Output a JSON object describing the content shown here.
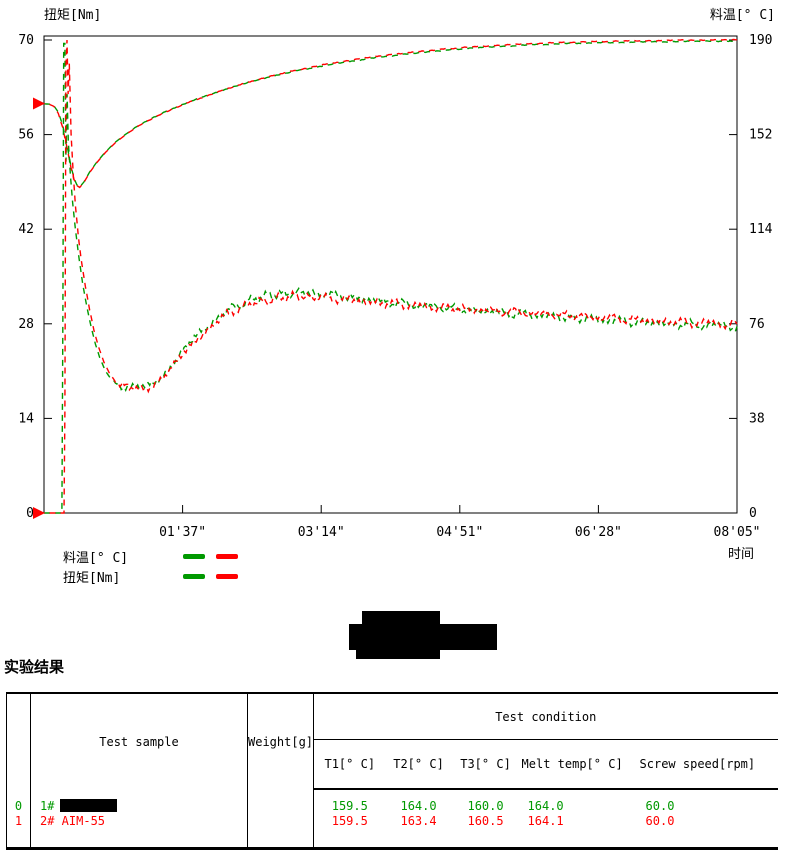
{
  "chart": {
    "title_left": "扭矩[Nm]",
    "title_right": "料温[° C]",
    "xlabel": "时间",
    "colors": {
      "series1": "#009900",
      "series2": "#ff0000",
      "axis": "#000000",
      "marker": "#ff0000"
    },
    "left_axis": {
      "label": "扭矩[Nm]",
      "ticks": [
        70,
        56,
        42,
        28,
        14,
        0
      ],
      "min": 0,
      "max": 70
    },
    "right_axis": {
      "label": "料温[° C]",
      "ticks": [
        190,
        152,
        114,
        76,
        38,
        0
      ],
      "min": 0,
      "max": 190
    },
    "x_axis": {
      "tick_seconds": [
        97,
        194,
        291,
        388,
        485
      ],
      "tick_labels": [
        "01'37\"",
        "03'14\"",
        "04'51\"",
        "06'28\"",
        "08'05\""
      ],
      "min": 0,
      "max": 485
    },
    "legend": [
      {
        "label": "料温[° C]"
      },
      {
        "label": "扭矩[Nm]"
      }
    ],
    "start_markers": [
      {
        "axis": "right",
        "value": 164.5
      },
      {
        "axis": "left",
        "value": 0
      }
    ]
  },
  "chart_data": {
    "type": "line",
    "x_unit": "seconds",
    "ylim_left": [
      0,
      70
    ],
    "ylim_right": [
      0,
      190
    ],
    "xlim": [
      0,
      485
    ],
    "series": [
      {
        "name": "melt-temp-sample-1",
        "axis": "right",
        "color": "#009900",
        "noise": 0.15,
        "noise_start": 55,
        "points": [
          [
            0,
            164.4
          ],
          [
            4,
            164.2
          ],
          [
            7,
            163.5
          ],
          [
            10,
            161
          ],
          [
            13,
            156
          ],
          [
            16,
            148
          ],
          [
            19,
            139
          ],
          [
            21,
            134.5
          ],
          [
            23,
            131.8
          ],
          [
            25,
            131
          ],
          [
            28,
            133
          ],
          [
            32,
            137
          ],
          [
            37,
            141
          ],
          [
            43,
            145
          ],
          [
            50,
            149
          ],
          [
            58,
            152.5
          ],
          [
            67,
            156
          ],
          [
            77,
            159
          ],
          [
            88,
            162
          ],
          [
            100,
            164.8
          ],
          [
            113,
            167.5
          ],
          [
            127,
            170.2
          ],
          [
            142,
            172.8
          ],
          [
            158,
            175.2
          ],
          [
            175,
            177.4
          ],
          [
            193,
            179.4
          ],
          [
            212,
            181.2
          ],
          [
            232,
            182.9
          ],
          [
            253,
            184.3
          ],
          [
            275,
            185.6
          ],
          [
            298,
            186.7
          ],
          [
            322,
            187.5
          ],
          [
            347,
            188.2
          ],
          [
            373,
            188.7
          ],
          [
            400,
            189.0
          ],
          [
            430,
            189.3
          ],
          [
            460,
            189.5
          ],
          [
            485,
            189.6
          ]
        ]
      },
      {
        "name": "melt-temp-sample-2",
        "axis": "right",
        "color": "#ff0000",
        "noise": 0.15,
        "noise_start": 55,
        "points": [
          [
            0,
            164.4
          ],
          [
            4,
            164.1
          ],
          [
            7,
            163.3
          ],
          [
            10,
            160.5
          ],
          [
            13,
            155
          ],
          [
            16,
            147
          ],
          [
            19,
            138.5
          ],
          [
            21,
            134
          ],
          [
            23,
            131.5
          ],
          [
            25,
            130.8
          ],
          [
            28,
            132.8
          ],
          [
            32,
            136.8
          ],
          [
            37,
            140.8
          ],
          [
            43,
            144.8
          ],
          [
            50,
            148.8
          ],
          [
            58,
            152.3
          ],
          [
            67,
            155.8
          ],
          [
            77,
            158.8
          ],
          [
            88,
            161.8
          ],
          [
            100,
            164.6
          ],
          [
            113,
            167.4
          ],
          [
            127,
            170.2
          ],
          [
            142,
            172.9
          ],
          [
            158,
            175.4
          ],
          [
            175,
            177.7
          ],
          [
            193,
            179.8
          ],
          [
            212,
            181.7
          ],
          [
            232,
            183.4
          ],
          [
            253,
            184.8
          ],
          [
            275,
            186.1
          ],
          [
            298,
            187.2
          ],
          [
            322,
            188.0
          ],
          [
            347,
            188.7
          ],
          [
            373,
            189.2
          ],
          [
            400,
            189.5
          ],
          [
            430,
            189.8
          ],
          [
            460,
            190.0
          ],
          [
            485,
            190.1
          ]
        ]
      },
      {
        "name": "torque-sample-1",
        "axis": "left",
        "color": "#009900",
        "noise": 0.55,
        "noise_start": 46,
        "points": [
          [
            0,
            0
          ],
          [
            12.5,
            0
          ],
          [
            13.2,
            30
          ],
          [
            13.8,
            69.5
          ],
          [
            14.6,
            69.5
          ],
          [
            15.4,
            52
          ],
          [
            16.2,
            62
          ],
          [
            17,
            55
          ],
          [
            18.5,
            50
          ],
          [
            20,
            46
          ],
          [
            22,
            42
          ],
          [
            24,
            38.5
          ],
          [
            27,
            34
          ],
          [
            30,
            30.5
          ],
          [
            33,
            27.5
          ],
          [
            36,
            25
          ],
          [
            39,
            23
          ],
          [
            43,
            21
          ],
          [
            47,
            19.8
          ],
          [
            51,
            19.1
          ],
          [
            56,
            18.6
          ],
          [
            62,
            18.4
          ],
          [
            68,
            18.5
          ],
          [
            74,
            19.0
          ],
          [
            80,
            19.9
          ],
          [
            86,
            21.1
          ],
          [
            92,
            22.5
          ],
          [
            98,
            24.0
          ],
          [
            104,
            25.5
          ],
          [
            110,
            26.8
          ],
          [
            116,
            28.0
          ],
          [
            122,
            29.0
          ],
          [
            129,
            30.0
          ],
          [
            137,
            30.9
          ],
          [
            146,
            31.6
          ],
          [
            156,
            32.1
          ],
          [
            166,
            32.4
          ],
          [
            176,
            32.6
          ],
          [
            186,
            32.6
          ],
          [
            196,
            32.4
          ],
          [
            210,
            32.0
          ],
          [
            225,
            31.6
          ],
          [
            240,
            31.2
          ],
          [
            255,
            30.9
          ],
          [
            270,
            30.6
          ],
          [
            285,
            30.3
          ],
          [
            300,
            30.0
          ],
          [
            315,
            29.8
          ],
          [
            330,
            29.5
          ],
          [
            345,
            29.3
          ],
          [
            360,
            29.0
          ],
          [
            375,
            28.8
          ],
          [
            390,
            28.6
          ],
          [
            405,
            28.4
          ],
          [
            420,
            28.2
          ],
          [
            435,
            28.0
          ],
          [
            450,
            27.9
          ],
          [
            465,
            27.8
          ],
          [
            485,
            27.6
          ]
        ]
      },
      {
        "name": "torque-sample-2",
        "axis": "left",
        "color": "#ff0000",
        "noise": 0.55,
        "noise_start": 46,
        "points": [
          [
            0,
            0
          ],
          [
            14,
            0
          ],
          [
            14.6,
            15
          ],
          [
            15.3,
            66
          ],
          [
            16.1,
            70
          ],
          [
            16.9,
            62
          ],
          [
            17.7,
            66.5
          ],
          [
            19,
            56
          ],
          [
            20.5,
            50
          ],
          [
            22,
            45.5
          ],
          [
            24,
            41
          ],
          [
            26,
            37.5
          ],
          [
            29,
            33.5
          ],
          [
            32,
            30
          ],
          [
            35,
            27
          ],
          [
            38,
            24.7
          ],
          [
            42,
            22.3
          ],
          [
            46,
            20.6
          ],
          [
            50,
            19.5
          ],
          [
            55,
            18.8
          ],
          [
            61,
            18.3
          ],
          [
            67,
            18.3
          ],
          [
            73,
            18.7
          ],
          [
            79,
            19.4
          ],
          [
            85,
            20.5
          ],
          [
            91,
            21.8
          ],
          [
            97,
            23.3
          ],
          [
            103,
            24.8
          ],
          [
            109,
            26.1
          ],
          [
            115,
            27.3
          ],
          [
            121,
            28.4
          ],
          [
            128,
            29.4
          ],
          [
            136,
            30.3
          ],
          [
            145,
            31.0
          ],
          [
            155,
            31.5
          ],
          [
            165,
            31.8
          ],
          [
            175,
            32.0
          ],
          [
            186,
            32.0
          ],
          [
            196,
            31.9
          ],
          [
            210,
            31.6
          ],
          [
            225,
            31.3
          ],
          [
            240,
            31.0
          ],
          [
            255,
            30.8
          ],
          [
            270,
            30.5
          ],
          [
            285,
            30.3
          ],
          [
            300,
            30.1
          ],
          [
            315,
            29.9
          ],
          [
            330,
            29.7
          ],
          [
            345,
            29.5
          ],
          [
            360,
            29.3
          ],
          [
            375,
            29.1
          ],
          [
            390,
            28.9
          ],
          [
            405,
            28.7
          ],
          [
            420,
            28.5
          ],
          [
            435,
            28.3
          ],
          [
            450,
            28.2
          ],
          [
            465,
            28.1
          ],
          [
            485,
            28.0
          ]
        ]
      }
    ]
  },
  "redactions": {
    "title_blob": true,
    "row0_sample_name": true
  },
  "results": {
    "heading": "实验结果",
    "table": {
      "col_headers": {
        "sample": "Test sample",
        "weight": "Weight[g]",
        "condition": "Test condition",
        "t1": "T1[° C]",
        "t2": "T2[° C]",
        "t3": "T3[° C]",
        "melt": "Melt temp[° C]",
        "speed": "Screw speed[rpm]"
      },
      "rows": [
        {
          "index": "0",
          "sample": "1#",
          "sample_redacted": true,
          "weight": "",
          "t1": "159.5",
          "t2": "164.0",
          "t3": "160.0",
          "melt": "164.0",
          "speed": "60.0",
          "color": "#009900"
        },
        {
          "index": "1",
          "sample": "2# AIM-55",
          "sample_redacted": false,
          "weight": "",
          "t1": "159.5",
          "t2": "163.4",
          "t3": "160.5",
          "melt": "164.1",
          "speed": "60.0",
          "color": "#ff0000"
        }
      ]
    }
  }
}
